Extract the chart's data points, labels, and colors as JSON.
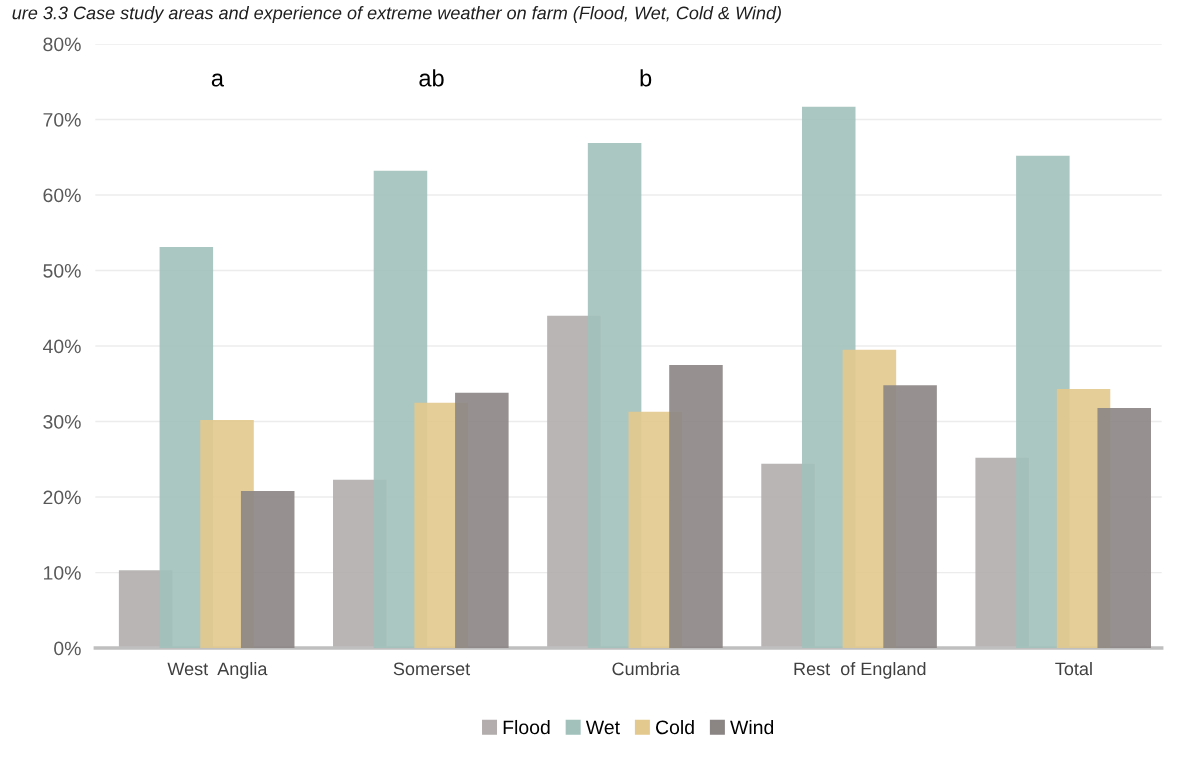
{
  "chart_data": {
    "type": "bar",
    "title": "ure 3.3 Case study areas and experience of extreme weather on farm (Flood, Wet, Cold & Wind)",
    "categories": [
      "West  Anglia",
      "Somerset",
      "Cumbria",
      "Rest  of England",
      "Total"
    ],
    "series": [
      {
        "name": "Flood",
        "color": "#b3adad",
        "values": [
          10.3,
          22.3,
          44.0,
          24.4,
          25.2
        ]
      },
      {
        "name": "Wet",
        "color": "#a2c1bb",
        "values": [
          53.1,
          63.2,
          66.9,
          71.7,
          65.2
        ]
      },
      {
        "name": "Cold",
        "color": "#e3c98e",
        "values": [
          30.2,
          32.5,
          31.3,
          39.5,
          34.3
        ]
      },
      {
        "name": "Wind",
        "color": "#8b8584",
        "values": [
          20.8,
          33.8,
          37.5,
          34.8,
          31.8
        ]
      }
    ],
    "annotations": [
      "a",
      "ab",
      "b"
    ],
    "ylim": [
      0,
      80
    ],
    "yticks": [
      {
        "value": 0,
        "label": "0%"
      },
      {
        "value": 10,
        "label": "10%"
      },
      {
        "value": 20,
        "label": "20%"
      },
      {
        "value": 30,
        "label": "30%"
      },
      {
        "value": 40,
        "label": "40%"
      },
      {
        "value": 50,
        "label": "50%"
      },
      {
        "value": 60,
        "label": "60%"
      },
      {
        "value": 70,
        "label": "70%"
      },
      {
        "value": 80,
        "label": "80%"
      }
    ],
    "grid": "y",
    "legend": "bottom"
  }
}
